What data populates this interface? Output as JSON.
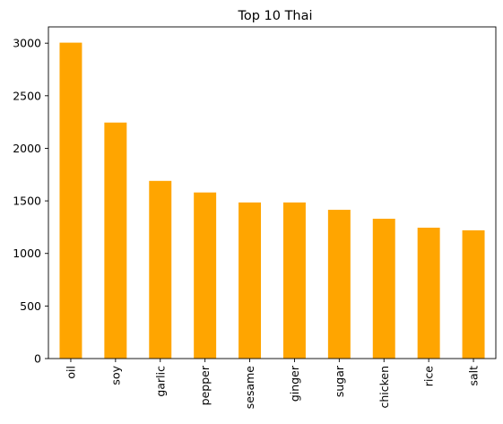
{
  "chart_data": {
    "type": "bar",
    "title": "Top 10 Thai",
    "xlabel": "",
    "ylabel": "",
    "categories": [
      "oil",
      "soy",
      "garlic",
      "pepper",
      "sesame",
      "ginger",
      "sugar",
      "chicken",
      "rice",
      "salt"
    ],
    "values": [
      3005,
      2245,
      1690,
      1580,
      1485,
      1485,
      1415,
      1330,
      1245,
      1220
    ],
    "ylim": [
      0,
      3155
    ],
    "yticks": [
      "0",
      "500",
      "1000",
      "1500",
      "2000",
      "2500",
      "3000"
    ],
    "grid": false,
    "legend": "none",
    "bar_color": "#ffa500",
    "x_tick_rotation": "vertical"
  }
}
